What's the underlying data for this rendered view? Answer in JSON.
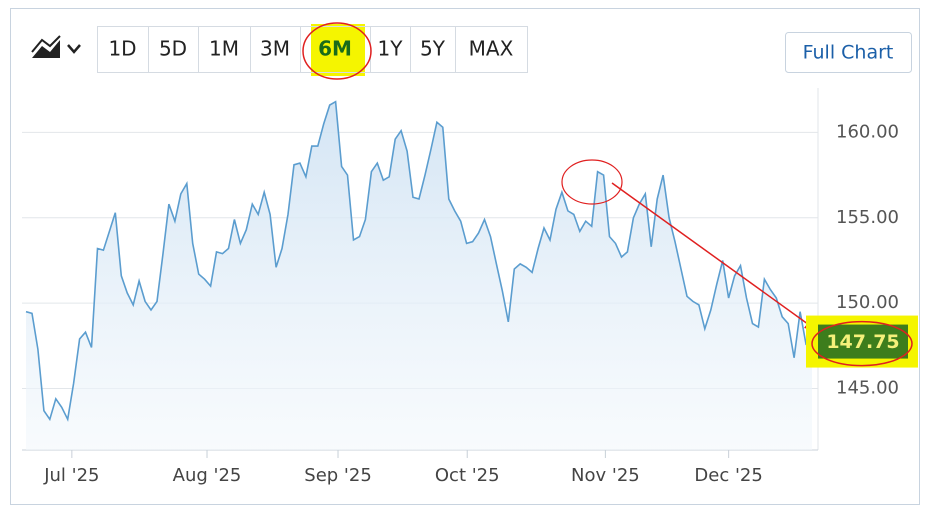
{
  "toolbar": {
    "ranges": [
      "1D",
      "5D",
      "1M",
      "3M",
      "6M",
      "1Y",
      "5Y",
      "MAX"
    ],
    "full_chart": "Full Chart"
  },
  "chart_data": {
    "type": "area",
    "color": "#5b9dcf",
    "grid": true,
    "values": [
      149.5,
      149.4,
      147.3,
      143.7,
      143.2,
      144.4,
      143.9,
      143.2,
      145.3,
      147.9,
      148.3,
      147.4,
      153.2,
      153.1,
      154.2,
      155.3,
      151.6,
      150.6,
      149.9,
      151.3,
      150.1,
      149.6,
      150.1,
      152.9,
      155.8,
      154.8,
      156.4,
      157.0,
      153.5,
      151.7,
      151.4,
      151.0,
      153.0,
      152.9,
      153.2,
      154.9,
      153.5,
      154.3,
      155.8,
      155.2,
      156.5,
      155.2,
      152.1,
      153.2,
      155.2,
      158.1,
      158.2,
      157.4,
      159.2,
      159.2,
      160.5,
      161.6,
      161.8,
      158.0,
      157.5,
      153.7,
      153.9,
      154.9,
      157.7,
      158.2,
      157.2,
      157.4,
      159.6,
      160.1,
      158.9,
      156.2,
      156.1,
      157.5,
      159.0,
      160.6,
      160.3,
      156.1,
      155.4,
      154.8,
      153.5,
      153.6,
      154.1,
      154.9,
      153.9,
      152.3,
      150.7,
      148.9,
      152.0,
      152.3,
      152.1,
      151.8,
      153.2,
      154.4,
      153.7,
      155.5,
      156.5,
      155.4,
      155.2,
      154.2,
      154.8,
      154.5,
      157.7,
      157.5,
      153.9,
      153.5,
      152.7,
      153.0,
      155.0,
      155.8,
      156.4,
      153.3,
      156.1,
      157.5,
      155.0,
      153.6,
      152.0,
      150.4,
      150.1,
      149.9,
      148.5,
      149.6,
      151.1,
      152.5,
      150.3,
      151.6,
      152.2,
      150.3,
      148.8,
      148.6,
      151.4,
      150.8,
      150.3,
      149.2,
      148.8,
      146.8,
      149.5,
      147.6,
      147.75
    ],
    "last_price": 147.75,
    "ylim": [
      141.4,
      162.6
    ],
    "yticks": [
      {
        "value": 145,
        "label": "145.00"
      },
      {
        "value": 150,
        "label": "150.00"
      },
      {
        "value": 155,
        "label": "155.00"
      },
      {
        "value": 160,
        "label": "160.00"
      }
    ],
    "xlim": [
      0,
      132
    ],
    "xticks": [
      {
        "value": 7.7,
        "label": "Jul '25"
      },
      {
        "value": 30.4,
        "label": "Aug '25"
      },
      {
        "value": 52.4,
        "label": "Sep '25"
      },
      {
        "value": 74.1,
        "label": "Oct '25"
      },
      {
        "value": 97.3,
        "label": "Nov '25"
      },
      {
        "value": 118,
        "label": "Dec '25"
      }
    ]
  }
}
